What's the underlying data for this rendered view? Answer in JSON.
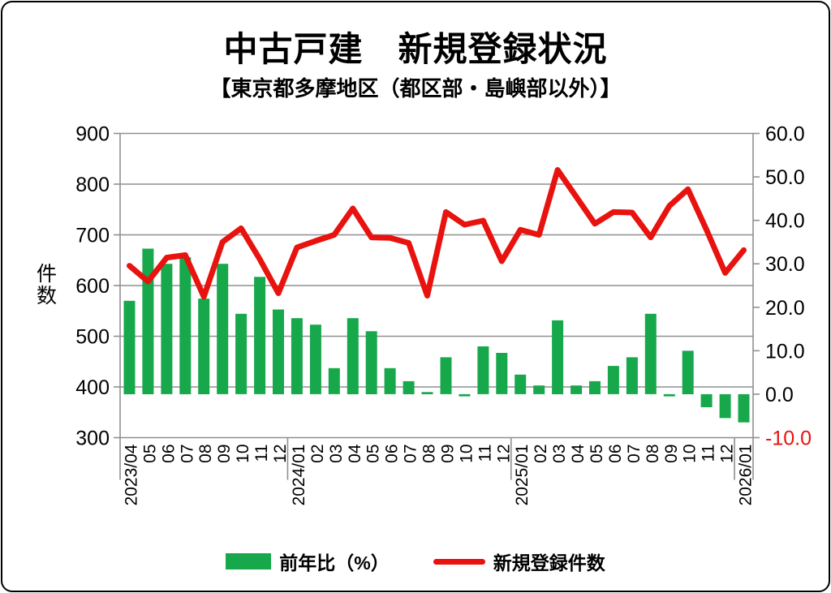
{
  "page": {
    "title": "中古戸建　新規登録状況",
    "subtitle": "【東京都多摩地区（都区部・島嶼部以外）】"
  },
  "colors": {
    "grid": "#8f8f8f",
    "text": "#000000",
    "bar_green": "#17a84c",
    "line_red": "#e8120f",
    "frame": "#000000",
    "background": "#ffffff"
  },
  "chart_data": {
    "type": "combo",
    "title": "中古戸建　新規登録状況",
    "subtitle": "【東京都多摩地区（都区部・島嶼部以外）】",
    "grid": true,
    "legend_position": "bottom",
    "categories": [
      "2023/04",
      "05",
      "06",
      "07",
      "08",
      "09",
      "10",
      "11",
      "12",
      "2024/01",
      "02",
      "03",
      "04",
      "05",
      "06",
      "07",
      "08",
      "09",
      "10",
      "11",
      "12",
      "2025/01",
      "02",
      "03",
      "04",
      "05",
      "06",
      "07",
      "08",
      "09",
      "10",
      "11",
      "12",
      "2026/01"
    ],
    "series": [
      {
        "name": "前年比（%）",
        "type": "bar",
        "axis": "right",
        "color": "#17a84c",
        "values": [
          21.5,
          33.5,
          30,
          31.5,
          22,
          30,
          18.5,
          27,
          19.5,
          17.5,
          16,
          6,
          17.5,
          14.5,
          6,
          3,
          0.5,
          8.5,
          -0.5,
          11,
          9.5,
          4.5,
          2,
          17,
          2,
          3,
          6.5,
          8.5,
          18.5,
          -0.5,
          10,
          -3,
          -5.5,
          -6.5
        ]
      },
      {
        "name": "新規登録件数",
        "type": "line",
        "axis": "left",
        "color": "#e8120f",
        "values": [
          639,
          608,
          655,
          660,
          578,
          686,
          713,
          652,
          585,
          675,
          688,
          700,
          752,
          695,
          694,
          684,
          580,
          745,
          720,
          728,
          648,
          710,
          700,
          828,
          775,
          722,
          745,
          744,
          695,
          757,
          790,
          710,
          625,
          670
        ]
      }
    ],
    "left_axis": {
      "label": "件数",
      "min": 300,
      "max": 900,
      "step": 100
    },
    "right_axis": {
      "min": -10,
      "max": 60,
      "step": 10,
      "decimals": 1,
      "negative_color": "#e8120f"
    },
    "year_separator_indices": [
      0,
      9,
      21,
      33,
      34
    ]
  }
}
